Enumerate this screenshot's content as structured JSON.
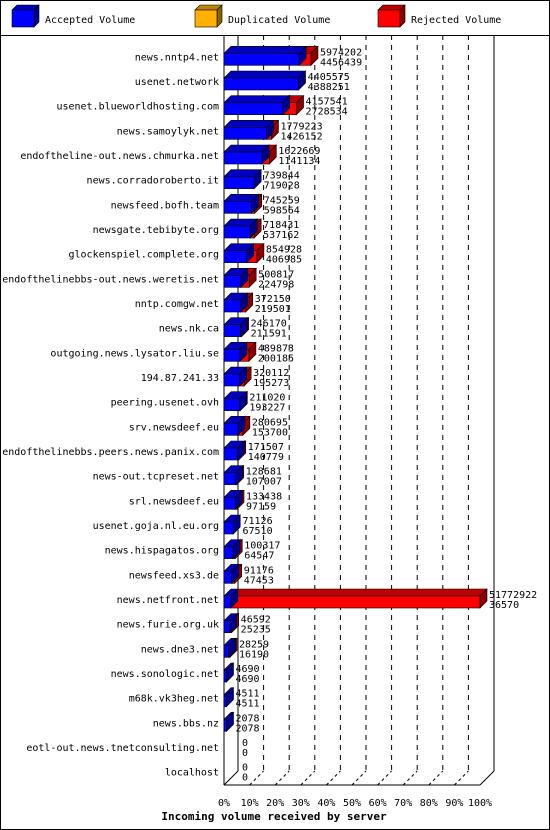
{
  "chart_data": {
    "type": "bar",
    "orientation": "horizontal",
    "style": "3d",
    "xlabel": "Incoming volume received by server",
    "x_ticks": [
      "0%",
      "10%",
      "20%",
      "30%",
      "40%",
      "50%",
      "60%",
      "70%",
      "80%",
      "90%",
      "100%"
    ],
    "legend_position": "top",
    "series": [
      {
        "name": "Accepted Volume",
        "color": "#0000ff"
      },
      {
        "name": "Duplicated Volume",
        "color": "#ffb000"
      },
      {
        "name": "Rejected Volume",
        "color": "#ff0000"
      }
    ],
    "rows": [
      {
        "server": "news.nntp4.net",
        "total": "5974202",
        "accepted": "4456439",
        "total_v": 5974202,
        "accepted_v": 4456439
      },
      {
        "server": "usenet.network",
        "total": "4405575",
        "accepted": "4388251",
        "total_v": 4405575,
        "accepted_v": 4388251
      },
      {
        "server": "usenet.blueworldhosting.com",
        "total": "4157541",
        "accepted": "2728534",
        "total_v": 4157541,
        "accepted_v": 2728534
      },
      {
        "server": "news.samoylyk.net",
        "total": "1779223",
        "accepted": "1426152",
        "total_v": 1779223,
        "accepted_v": 1426152
      },
      {
        "server": "endoftheline-out.news.chmurka.net",
        "total": "1622669",
        "accepted": "1141134",
        "total_v": 1622669,
        "accepted_v": 1141134
      },
      {
        "server": "news.corradoroberto.it",
        "total": "739844",
        "accepted": "719028",
        "total_v": 739844,
        "accepted_v": 719028
      },
      {
        "server": "newsfeed.bofh.team",
        "total": "745259",
        "accepted": "598564",
        "total_v": 745259,
        "accepted_v": 598564
      },
      {
        "server": "newsgate.tebibyte.org",
        "total": "718431",
        "accepted": "537162",
        "total_v": 718431,
        "accepted_v": 537162
      },
      {
        "server": "glockenspiel.complete.org",
        "total": "854928",
        "accepted": "406985",
        "total_v": 854928,
        "accepted_v": 406985
      },
      {
        "server": "endofthelinebbs-out.news.weretis.net",
        "total": "500817",
        "accepted": "224798",
        "total_v": 500817,
        "accepted_v": 224798
      },
      {
        "server": "nntp.comgw.net",
        "total": "372150",
        "accepted": "219501",
        "total_v": 372150,
        "accepted_v": 219501
      },
      {
        "server": "news.nk.ca",
        "total": "246170",
        "accepted": "211591",
        "total_v": 246170,
        "accepted_v": 211591
      },
      {
        "server": "outgoing.news.lysator.liu.se",
        "total": "489873",
        "accepted": "200185",
        "total_v": 489873,
        "accepted_v": 200185
      },
      {
        "server": "194.87.241.33",
        "total": "320112",
        "accepted": "195273",
        "total_v": 320112,
        "accepted_v": 195273
      },
      {
        "server": "peering.usenet.ovh",
        "total": "211020",
        "accepted": "193227",
        "total_v": 211020,
        "accepted_v": 193227
      },
      {
        "server": "srv.newsdeef.eu",
        "total": "280695",
        "accepted": "153700",
        "total_v": 280695,
        "accepted_v": 153700
      },
      {
        "server": "endofthelinebbs.peers.news.panix.com",
        "total": "171507",
        "accepted": "140779",
        "total_v": 171507,
        "accepted_v": 140779
      },
      {
        "server": "news-out.tcpreset.net",
        "total": "128681",
        "accepted": "107007",
        "total_v": 128681,
        "accepted_v": 107007
      },
      {
        "server": "srl.newsdeef.eu",
        "total": "133438",
        "accepted": "97159",
        "total_v": 133438,
        "accepted_v": 97159
      },
      {
        "server": "usenet.goja.nl.eu.org",
        "total": "71126",
        "accepted": "67510",
        "total_v": 71126,
        "accepted_v": 67510
      },
      {
        "server": "news.hispagatos.org",
        "total": "100317",
        "accepted": "64547",
        "total_v": 100317,
        "accepted_v": 64547
      },
      {
        "server": "newsfeed.xs3.de",
        "total": "91176",
        "accepted": "47453",
        "total_v": 91176,
        "accepted_v": 47453
      },
      {
        "server": "news.netfront.net",
        "total": "51772922",
        "accepted": "36570",
        "total_v": 51772922,
        "accepted_v": 36570
      },
      {
        "server": "news.furie.org.uk",
        "total": "46592",
        "accepted": "25235",
        "total_v": 46592,
        "accepted_v": 25235
      },
      {
        "server": "news.dne3.net",
        "total": "28259",
        "accepted": "16190",
        "total_v": 28259,
        "accepted_v": 16190
      },
      {
        "server": "news.sonologic.net",
        "total": "4690",
        "accepted": "4690",
        "total_v": 4690,
        "accepted_v": 4690
      },
      {
        "server": "m68k.vk3heg.net",
        "total": "4511",
        "accepted": "4511",
        "total_v": 4511,
        "accepted_v": 4511
      },
      {
        "server": "news.bbs.nz",
        "total": "2078",
        "accepted": "2078",
        "total_v": 2078,
        "accepted_v": 2078
      },
      {
        "server": "eotl-out.news.tnetconsulting.net",
        "total": "0",
        "accepted": "0",
        "total_v": 0,
        "accepted_v": 0
      },
      {
        "server": "localhost",
        "total": "0",
        "accepted": "0",
        "total_v": 0,
        "accepted_v": 0
      }
    ]
  }
}
